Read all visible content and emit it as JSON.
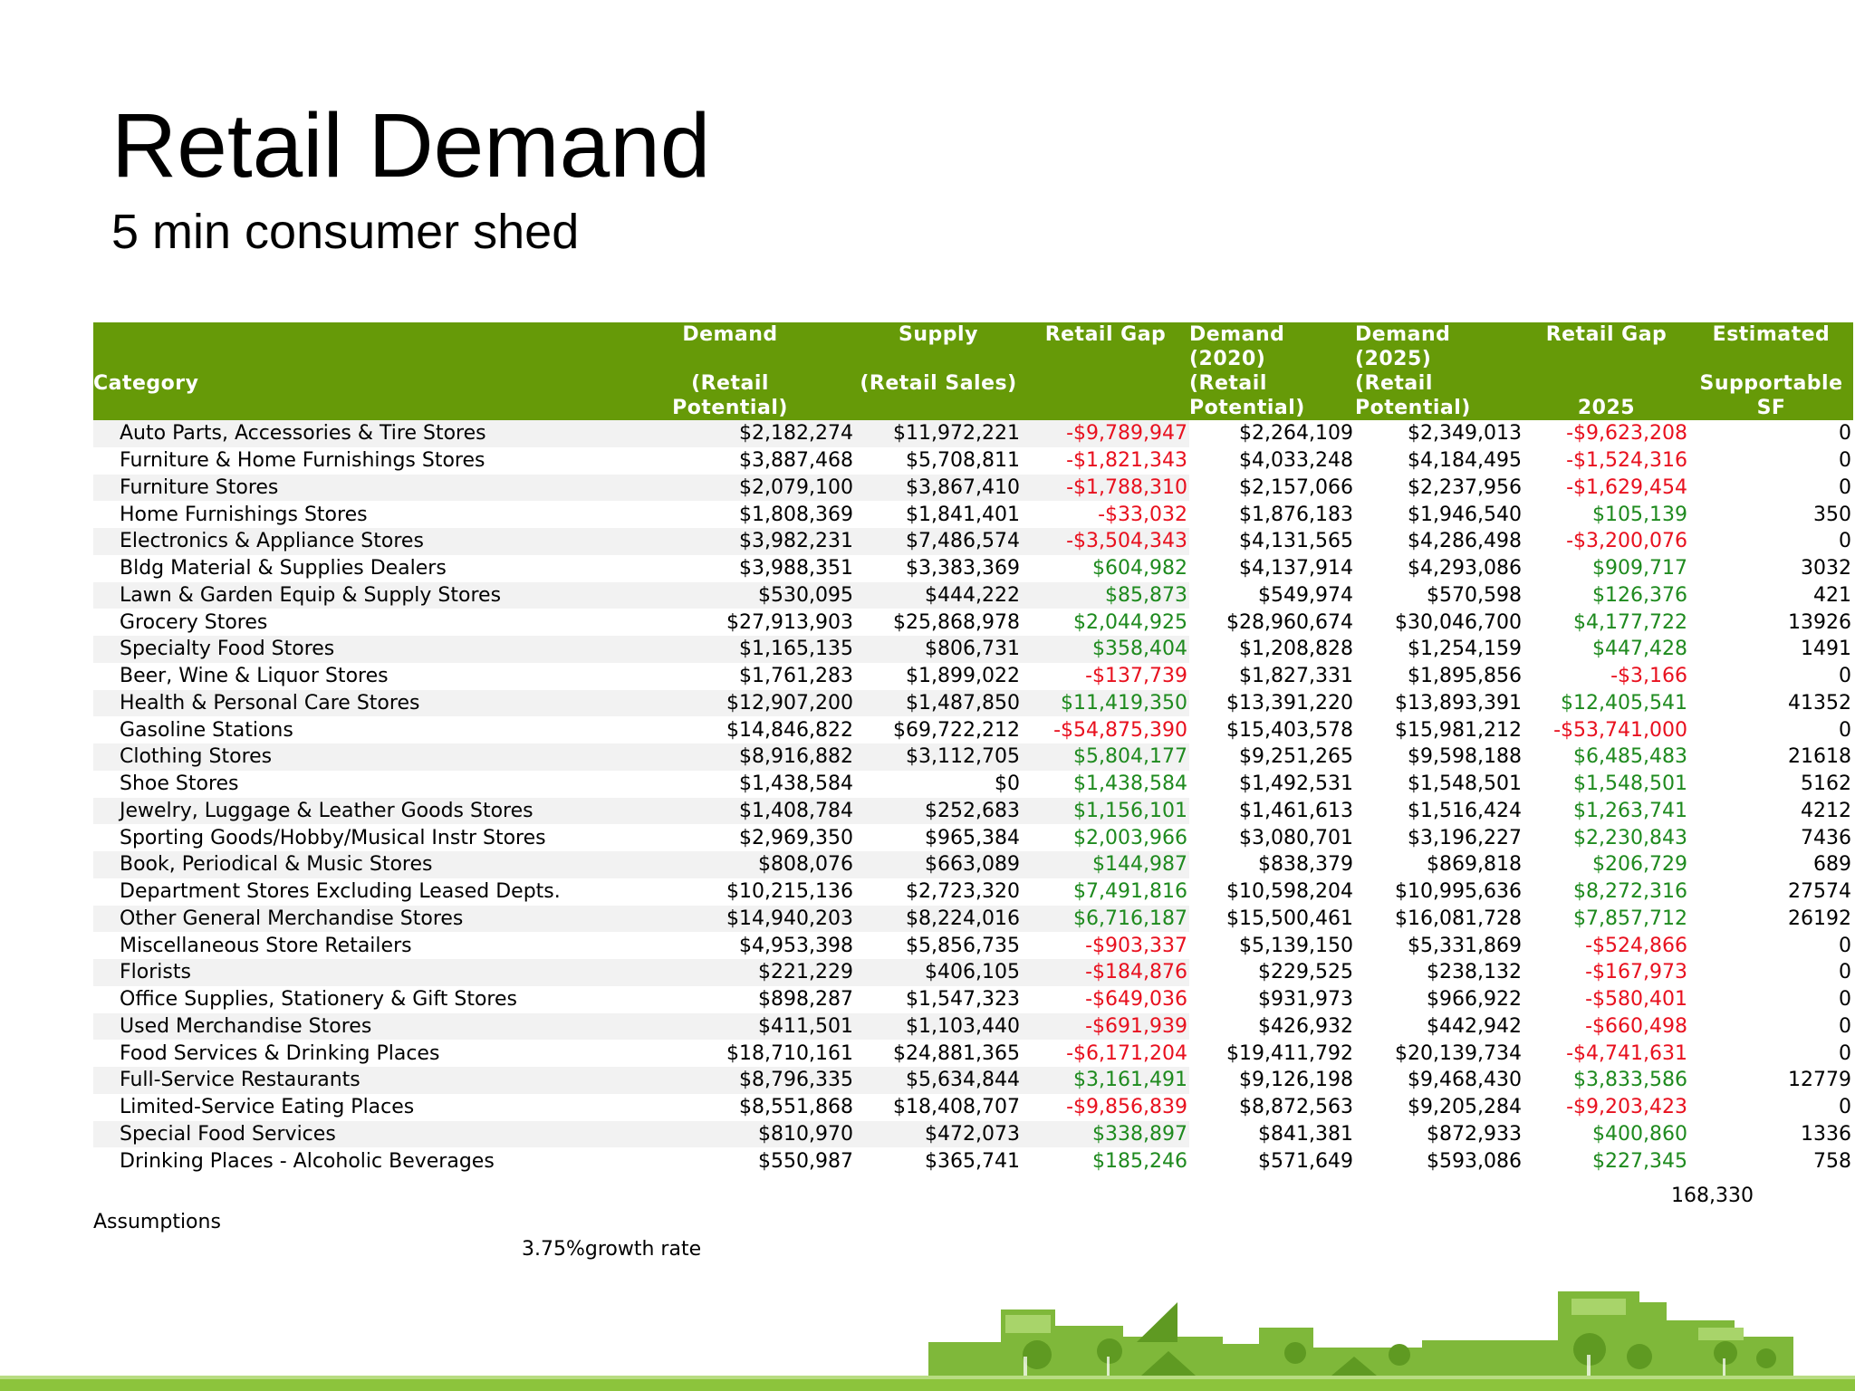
{
  "title": "Retail Demand",
  "subtitle": "5 min consumer shed",
  "colors": {
    "header_green": "#669a08",
    "positive": "#1e8a1e",
    "negative": "#e8101e",
    "stripe": "#f2f2f2"
  },
  "table": {
    "headers": {
      "category": [
        "",
        "",
        "Category",
        ""
      ],
      "demand": [
        "Demand",
        "",
        "(Retail",
        "Potential)"
      ],
      "supply": [
        "Supply",
        "",
        "(Retail Sales)",
        ""
      ],
      "gap": [
        "Retail Gap",
        "",
        "",
        ""
      ],
      "demand2020": [
        "Demand",
        "(2020)",
        "(Retail",
        "Potential)"
      ],
      "demand2025": [
        "Demand",
        "(2025)",
        "(Retail",
        "Potential)"
      ],
      "gap2025": [
        "Retail Gap",
        "",
        "",
        "2025"
      ],
      "sf": [
        "Estimated",
        "",
        "Supportable",
        "SF"
      ]
    },
    "rows": [
      {
        "category": "Auto Parts, Accessories & Tire Stores",
        "demand": "$2,182,274",
        "supply": "$11,972,221",
        "gap": "-$9,789,947",
        "demand2020": "$2,264,109",
        "demand2025": "$2,349,013",
        "gap2025": "-$9,623,208",
        "sf": "0"
      },
      {
        "category": "Furniture & Home Furnishings Stores",
        "demand": "$3,887,468",
        "supply": "$5,708,811",
        "gap": "-$1,821,343",
        "demand2020": "$4,033,248",
        "demand2025": "$4,184,495",
        "gap2025": "-$1,524,316",
        "sf": "0"
      },
      {
        "category": "Furniture Stores",
        "demand": "$2,079,100",
        "supply": "$3,867,410",
        "gap": "-$1,788,310",
        "demand2020": "$2,157,066",
        "demand2025": "$2,237,956",
        "gap2025": "-$1,629,454",
        "sf": "0"
      },
      {
        "category": "Home Furnishings Stores",
        "demand": "$1,808,369",
        "supply": "$1,841,401",
        "gap": "-$33,032",
        "demand2020": "$1,876,183",
        "demand2025": "$1,946,540",
        "gap2025": "$105,139",
        "sf": "350"
      },
      {
        "category": "Electronics & Appliance Stores",
        "demand": "$3,982,231",
        "supply": "$7,486,574",
        "gap": "-$3,504,343",
        "demand2020": "$4,131,565",
        "demand2025": "$4,286,498",
        "gap2025": "-$3,200,076",
        "sf": "0"
      },
      {
        "category": "Bldg Material & Supplies Dealers",
        "demand": "$3,988,351",
        "supply": "$3,383,369",
        "gap": "$604,982",
        "demand2020": "$4,137,914",
        "demand2025": "$4,293,086",
        "gap2025": "$909,717",
        "sf": "3032"
      },
      {
        "category": "Lawn & Garden Equip & Supply Stores",
        "demand": "$530,095",
        "supply": "$444,222",
        "gap": "$85,873",
        "demand2020": "$549,974",
        "demand2025": "$570,598",
        "gap2025": "$126,376",
        "sf": "421"
      },
      {
        "category": "Grocery Stores",
        "demand": "$27,913,903",
        "supply": "$25,868,978",
        "gap": "$2,044,925",
        "demand2020": "$28,960,674",
        "demand2025": "$30,046,700",
        "gap2025": "$4,177,722",
        "sf": "13926"
      },
      {
        "category": "Specialty Food Stores",
        "demand": "$1,165,135",
        "supply": "$806,731",
        "gap": "$358,404",
        "demand2020": "$1,208,828",
        "demand2025": "$1,254,159",
        "gap2025": "$447,428",
        "sf": "1491"
      },
      {
        "category": "Beer, Wine & Liquor Stores",
        "demand": "$1,761,283",
        "supply": "$1,899,022",
        "gap": "-$137,739",
        "demand2020": "$1,827,331",
        "demand2025": "$1,895,856",
        "gap2025": "-$3,166",
        "sf": "0"
      },
      {
        "category": "Health & Personal Care Stores",
        "demand": "$12,907,200",
        "supply": "$1,487,850",
        "gap": "$11,419,350",
        "demand2020": "$13,391,220",
        "demand2025": "$13,893,391",
        "gap2025": "$12,405,541",
        "sf": "41352"
      },
      {
        "category": "Gasoline Stations",
        "demand": "$14,846,822",
        "supply": "$69,722,212",
        "gap": "-$54,875,390",
        "demand2020": "$15,403,578",
        "demand2025": "$15,981,212",
        "gap2025": "-$53,741,000",
        "sf": "0"
      },
      {
        "category": "Clothing Stores",
        "demand": "$8,916,882",
        "supply": "$3,112,705",
        "gap": "$5,804,177",
        "demand2020": "$9,251,265",
        "demand2025": "$9,598,188",
        "gap2025": "$6,485,483",
        "sf": "21618"
      },
      {
        "category": "Shoe Stores",
        "demand": "$1,438,584",
        "supply": "$0",
        "gap": "$1,438,584",
        "demand2020": "$1,492,531",
        "demand2025": "$1,548,501",
        "gap2025": "$1,548,501",
        "sf": "5162"
      },
      {
        "category": "Jewelry, Luggage & Leather Goods Stores",
        "demand": "$1,408,784",
        "supply": "$252,683",
        "gap": "$1,156,101",
        "demand2020": "$1,461,613",
        "demand2025": "$1,516,424",
        "gap2025": "$1,263,741",
        "sf": "4212"
      },
      {
        "category": "Sporting Goods/Hobby/Musical Instr Stores",
        "demand": "$2,969,350",
        "supply": "$965,384",
        "gap": "$2,003,966",
        "demand2020": "$3,080,701",
        "demand2025": "$3,196,227",
        "gap2025": "$2,230,843",
        "sf": "7436"
      },
      {
        "category": "Book, Periodical & Music Stores",
        "demand": "$808,076",
        "supply": "$663,089",
        "gap": "$144,987",
        "demand2020": "$838,379",
        "demand2025": "$869,818",
        "gap2025": "$206,729",
        "sf": "689"
      },
      {
        "category": "Department Stores Excluding Leased Depts.",
        "demand": "$10,215,136",
        "supply": "$2,723,320",
        "gap": "$7,491,816",
        "demand2020": "$10,598,204",
        "demand2025": "$10,995,636",
        "gap2025": "$8,272,316",
        "sf": "27574"
      },
      {
        "category": "Other General Merchandise Stores",
        "demand": "$14,940,203",
        "supply": "$8,224,016",
        "gap": "$6,716,187",
        "demand2020": "$15,500,461",
        "demand2025": "$16,081,728",
        "gap2025": "$7,857,712",
        "sf": "26192"
      },
      {
        "category": "Miscellaneous Store Retailers",
        "demand": "$4,953,398",
        "supply": "$5,856,735",
        "gap": "-$903,337",
        "demand2020": "$5,139,150",
        "demand2025": "$5,331,869",
        "gap2025": "-$524,866",
        "sf": "0"
      },
      {
        "category": "Florists",
        "demand": "$221,229",
        "supply": "$406,105",
        "gap": "-$184,876",
        "demand2020": "$229,525",
        "demand2025": "$238,132",
        "gap2025": "-$167,973",
        "sf": "0"
      },
      {
        "category": "Office Supplies, Stationery & Gift Stores",
        "demand": "$898,287",
        "supply": "$1,547,323",
        "gap": "-$649,036",
        "demand2020": "$931,973",
        "demand2025": "$966,922",
        "gap2025": "-$580,401",
        "sf": "0"
      },
      {
        "category": "Used Merchandise Stores",
        "demand": "$411,501",
        "supply": "$1,103,440",
        "gap": "-$691,939",
        "demand2020": "$426,932",
        "demand2025": "$442,942",
        "gap2025": "-$660,498",
        "sf": "0"
      },
      {
        "category": "Food Services & Drinking Places",
        "demand": "$18,710,161",
        "supply": "$24,881,365",
        "gap": "-$6,171,204",
        "demand2020": "$19,411,792",
        "demand2025": "$20,139,734",
        "gap2025": "-$4,741,631",
        "sf": "0"
      },
      {
        "category": "Full-Service Restaurants",
        "demand": "$8,796,335",
        "supply": "$5,634,844",
        "gap": "$3,161,491",
        "demand2020": "$9,126,198",
        "demand2025": "$9,468,430",
        "gap2025": "$3,833,586",
        "sf": "12779"
      },
      {
        "category": "Limited-Service Eating Places",
        "demand": "$8,551,868",
        "supply": "$18,408,707",
        "gap": "-$9,856,839",
        "demand2020": "$8,872,563",
        "demand2025": "$9,205,284",
        "gap2025": "-$9,203,423",
        "sf": "0"
      },
      {
        "category": "Special Food Services",
        "demand": "$810,970",
        "supply": "$472,073",
        "gap": "$338,897",
        "demand2020": "$841,381",
        "demand2025": "$872,933",
        "gap2025": "$400,860",
        "sf": "1336"
      },
      {
        "category": "Drinking Places - Alcoholic Beverages",
        "demand": "$550,987",
        "supply": "$365,741",
        "gap": "$185,246",
        "demand2020": "$571,649",
        "demand2025": "$593,086",
        "gap2025": "$227,345",
        "sf": "758"
      }
    ],
    "total_sf": "168,330"
  },
  "assumptions": {
    "label": "Assumptions",
    "growth": "3.75%growth rate"
  }
}
